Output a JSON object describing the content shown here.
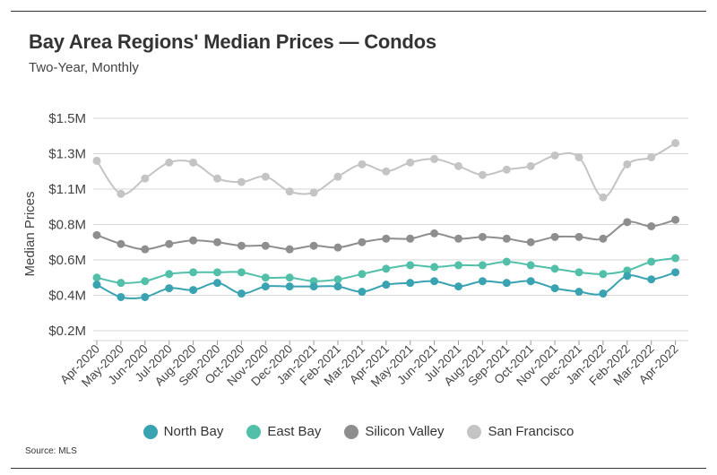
{
  "title": "Bay Area Regions' Median Prices — Condos",
  "subtitle": "Two-Year, Monthly",
  "source": "Source:  MLS",
  "chart_data": {
    "type": "line",
    "title": "Bay Area Regions' Median Prices — Condos",
    "subtitle": "Two-Year, Monthly",
    "xlabel": "",
    "ylabel": "Median Prices",
    "ylim": [
      0.2,
      1.5
    ],
    "yticks": [
      0.2,
      0.4,
      0.6,
      0.8,
      1.1,
      1.3,
      1.5
    ],
    "ytick_labels": [
      "$0.2M",
      "$0.4M",
      "$0.6M",
      "$0.8M",
      "$1.1M",
      "$1.3M",
      "$1.5M"
    ],
    "grid": true,
    "legend_position": "bottom",
    "categories": [
      "Apr-2020",
      "May-2020",
      "Jun-2020",
      "Jul-2020",
      "Aug-2020",
      "Sep-2020",
      "Oct-2020",
      "Nov-2020",
      "Dec-2020",
      "Jan-2021",
      "Feb-2021",
      "Mar-2021",
      "Apr-2021",
      "May-2021",
      "Jun-2021",
      "Jul-2021",
      "Aug-2021",
      "Sep-2021",
      "Oct-2021",
      "Nov-2021",
      "Dec-2021",
      "Jan-2022",
      "Feb-2022",
      "Mar-2022",
      "Apr-2022"
    ],
    "series": [
      {
        "name": "San Francisco",
        "color": "#c4c4c4",
        "values": [
          1.26,
          1.06,
          1.16,
          1.25,
          1.25,
          1.16,
          1.14,
          1.17,
          1.08,
          1.07,
          1.17,
          1.24,
          1.2,
          1.25,
          1.27,
          1.23,
          1.18,
          1.21,
          1.23,
          1.29,
          1.28,
          1.03,
          1.24,
          1.28,
          1.36
        ]
      },
      {
        "name": "Silicon Valley",
        "color": "#8e8e8e",
        "values": [
          0.74,
          0.69,
          0.66,
          0.69,
          0.71,
          0.7,
          0.68,
          0.68,
          0.66,
          0.68,
          0.67,
          0.7,
          0.72,
          0.72,
          0.75,
          0.72,
          0.73,
          0.72,
          0.7,
          0.73,
          0.73,
          0.72,
          0.82,
          0.79,
          0.84
        ]
      },
      {
        "name": "East Bay",
        "color": "#52c0a9",
        "values": [
          0.5,
          0.47,
          0.48,
          0.52,
          0.53,
          0.53,
          0.53,
          0.5,
          0.5,
          0.48,
          0.49,
          0.52,
          0.55,
          0.57,
          0.56,
          0.57,
          0.57,
          0.59,
          0.57,
          0.55,
          0.53,
          0.52,
          0.54,
          0.59,
          0.61
        ]
      },
      {
        "name": "North Bay",
        "color": "#3aa3b2",
        "values": [
          0.46,
          0.39,
          0.39,
          0.44,
          0.43,
          0.47,
          0.41,
          0.45,
          0.45,
          0.45,
          0.45,
          0.42,
          0.46,
          0.47,
          0.48,
          0.45,
          0.48,
          0.47,
          0.48,
          0.44,
          0.42,
          0.41,
          0.51,
          0.49,
          0.53
        ]
      }
    ],
    "legend_order": [
      "North Bay",
      "East Bay",
      "Silicon Valley",
      "San Francisco"
    ]
  }
}
